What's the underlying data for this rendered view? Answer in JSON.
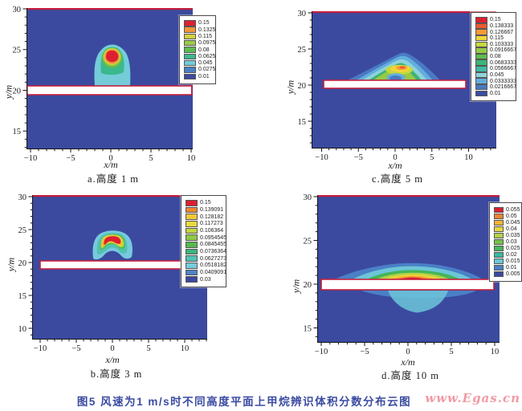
{
  "figure": {
    "caption": "图5  风速为1 m/s时不同高度平面上甲烷辨识体积分数分布云图",
    "caption_color": "#3a4ba1",
    "watermark": "www.Egas.cn",
    "watermark_color": "#f09aa6",
    "wall_outline_color": "#c41f3e",
    "background_color": "#3b4a9f"
  },
  "chart_data": [
    {
      "id": "a",
      "type": "heatmap",
      "caption": "a.高度 1 m",
      "xlabel": "x/m",
      "ylabel": "y/m",
      "x_ticks": [
        -10,
        -5,
        0,
        5,
        10
      ],
      "y_ticks": [
        30,
        25,
        20,
        15
      ],
      "x_range": [
        -10.5,
        10.2
      ],
      "y_range": [
        12.8,
        30
      ],
      "barrier": {
        "y_m": 20,
        "x_from_m": -10,
        "x_to_m": 10
      },
      "plume": {
        "center_x_m": 0,
        "base_y_m": 20.9,
        "top_y_m": 26,
        "peak_level": "0.15",
        "shape": "narrow onion plume on top of barrier, red core near y=24.5-25.5"
      },
      "levels": [
        {
          "value": "0.15",
          "color": "#dd2030"
        },
        {
          "value": "0.1325",
          "color": "#f2953a"
        },
        {
          "value": "0.115",
          "color": "#d4d13c"
        },
        {
          "value": "0.0975",
          "color": "#9ccb47"
        },
        {
          "value": "0.08",
          "color": "#5cbd50"
        },
        {
          "value": "0.0625",
          "color": "#3cb88e"
        },
        {
          "value": "0.045",
          "color": "#74ccd9"
        },
        {
          "value": "0.0275",
          "color": "#4b80c4"
        },
        {
          "value": "0.01",
          "color": "#3b4a9f"
        }
      ]
    },
    {
      "id": "c",
      "type": "heatmap",
      "caption": "c.高度 5 m",
      "xlabel": "x/m",
      "ylabel": "y/m",
      "x_ticks": [
        -10,
        -5,
        0,
        5,
        10
      ],
      "y_ticks": [
        30,
        25,
        20,
        15
      ],
      "x_range": [
        -11.4,
        13.8
      ],
      "y_range": [
        11.2,
        30
      ],
      "barrier": {
        "y_m": 20,
        "x_from_m": -10,
        "x_to_m": 10
      },
      "plume": {
        "center_x_m": 0.5,
        "base_y_m": 20.5,
        "top_y_m": 24.2,
        "peak_level": "0.138333",
        "shape": "wide shallow dome on barrier with small orange-red streak near y=22.5 and blue dip at bottom center"
      },
      "levels": [
        {
          "value": "0.15",
          "color": "#dd2030"
        },
        {
          "value": "0.138333",
          "color": "#ec5a2e"
        },
        {
          "value": "0.126667",
          "color": "#f59b35"
        },
        {
          "value": "0.115",
          "color": "#f2d63a"
        },
        {
          "value": "0.103333",
          "color": "#c6d73f"
        },
        {
          "value": "0.0916667",
          "color": "#97ca45"
        },
        {
          "value": "0.08",
          "color": "#5cbc4d"
        },
        {
          "value": "0.0683333",
          "color": "#3cb476"
        },
        {
          "value": "0.0566667",
          "color": "#41bba5"
        },
        {
          "value": "0.045",
          "color": "#8ed3da"
        },
        {
          "value": "0.0333333",
          "color": "#62aede"
        },
        {
          "value": "0.0216667",
          "color": "#4a7ac4"
        },
        {
          "value": "0.01",
          "color": "#3b4a9f"
        }
      ]
    },
    {
      "id": "b",
      "type": "heatmap",
      "caption": "b.高度 3 m",
      "xlabel": "x/m",
      "ylabel": "y/m",
      "x_ticks": [
        -10,
        -5,
        0,
        5,
        10
      ],
      "y_ticks": [
        30,
        25,
        20,
        15,
        10
      ],
      "x_range": [
        -11.1,
        13.1
      ],
      "y_range": [
        8.3,
        30
      ],
      "barrier": {
        "y_m": 20,
        "x_from_m": -10,
        "x_to_m": 10
      },
      "plume": {
        "center_x_m": 0,
        "base_y_m": 21,
        "top_y_m": 25,
        "peak_level": "0.15",
        "shape": "compact blob above barrier with two bottom lobes and large red kidney-shaped core near y=23-24"
      },
      "levels": [
        {
          "value": "0.15",
          "color": "#dd2030"
        },
        {
          "value": "0.139091",
          "color": "#f0872f"
        },
        {
          "value": "0.128182",
          "color": "#f2c838"
        },
        {
          "value": "0.117273",
          "color": "#ead93e"
        },
        {
          "value": "0.106364",
          "color": "#c3d641"
        },
        {
          "value": "0.0954545",
          "color": "#8fc847"
        },
        {
          "value": "0.0845455",
          "color": "#55b94e"
        },
        {
          "value": "0.0736364",
          "color": "#3bb47e"
        },
        {
          "value": "0.0627273",
          "color": "#52c2b2"
        },
        {
          "value": "0.0518182",
          "color": "#77cade"
        },
        {
          "value": "0.0409091",
          "color": "#4f84c6"
        },
        {
          "value": "0.03",
          "color": "#3b4a9f"
        }
      ]
    },
    {
      "id": "d",
      "type": "heatmap",
      "caption": "d.高度 10 m",
      "xlabel": "x/m",
      "ylabel": "y/m",
      "x_ticks": [
        -10,
        -5,
        0,
        5,
        10
      ],
      "y_ticks": [
        30,
        25,
        20,
        15
      ],
      "x_range": [
        -10.5,
        10.6
      ],
      "y_range": [
        13.3,
        30
      ],
      "barrier": {
        "y_m": 20,
        "x_from_m": -10,
        "x_to_m": 10
      },
      "plume": {
        "center_x_m": 1.5,
        "base_y_m": 20.4,
        "top_y_m": 22.3,
        "peak_level": "0.055",
        "shape": "very wide thin lens hugging the barrier top with flat red core; faint light-blue cloud below the barrier"
      },
      "levels": [
        {
          "value": "0.055",
          "color": "#dd2030"
        },
        {
          "value": "0.05",
          "color": "#f0832f"
        },
        {
          "value": "0.045",
          "color": "#f7b438"
        },
        {
          "value": "0.04",
          "color": "#e8d83d"
        },
        {
          "value": "0.035",
          "color": "#b4d244"
        },
        {
          "value": "0.03",
          "color": "#74c24c"
        },
        {
          "value": "0.025",
          "color": "#44b65a"
        },
        {
          "value": "0.02",
          "color": "#3db79e"
        },
        {
          "value": "0.015",
          "color": "#6cc6d8"
        },
        {
          "value": "0.01",
          "color": "#4a80c6"
        },
        {
          "value": "0.005",
          "color": "#3b4a9f"
        }
      ]
    }
  ]
}
